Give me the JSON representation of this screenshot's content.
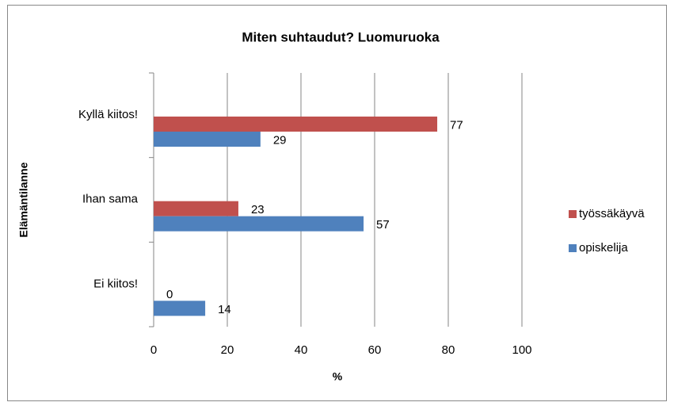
{
  "chart_data": {
    "type": "bar",
    "orientation": "horizontal",
    "title": "Miten suhtaudut? Luomuruoka",
    "y_label": "Elämäntilanne",
    "x_label": "%",
    "categories": [
      "Kyllä kiitos!",
      "Ihan sama",
      "Ei kiitos!"
    ],
    "series": [
      {
        "name": "työssäkäyvä",
        "color": "#c0504d",
        "values": [
          77,
          23,
          0
        ]
      },
      {
        "name": "opiskelija",
        "color": "#4f81bd",
        "values": [
          29,
          57,
          14
        ]
      }
    ],
    "xlim": [
      0,
      100
    ],
    "xticks": [
      0,
      20,
      40,
      60,
      80,
      100
    ],
    "grid": true,
    "legend": "right"
  }
}
